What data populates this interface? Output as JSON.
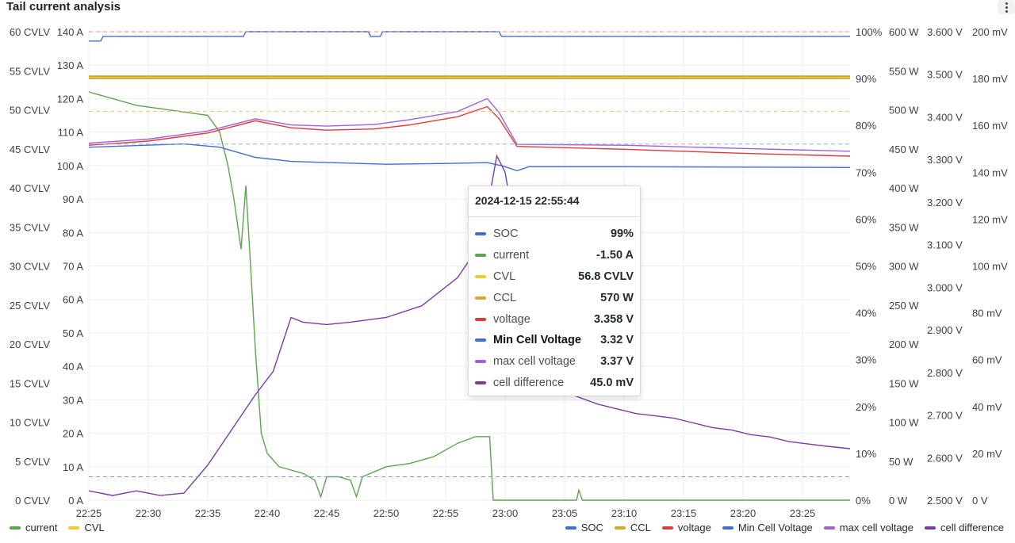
{
  "panel": {
    "title": "Tail current analysis"
  },
  "tooltip": {
    "time": "2024-12-15 22:55:44",
    "rows": [
      {
        "name": "SOC",
        "value": "99%",
        "color": "#3e6fd6"
      },
      {
        "name": "current",
        "value": "-1.50 A",
        "color": "#5aa64b"
      },
      {
        "name": "CVL",
        "value": "56.8 CVLV",
        "color": "#f2cc2a"
      },
      {
        "name": "CCL",
        "value": "570 W",
        "color": "#d9a72c"
      },
      {
        "name": "voltage",
        "value": "3.358 V",
        "color": "#e03a3a"
      },
      {
        "name": "Min Cell Voltage",
        "value": "3.32 V",
        "color": "#3e6fd6"
      },
      {
        "name": "max cell voltage",
        "value": "3.37 V",
        "color": "#a560d8"
      },
      {
        "name": "cell difference",
        "value": "45.0 mV",
        "color": "#7b3aa8"
      }
    ]
  },
  "legend_left": [
    {
      "name": "current",
      "color": "#5aa64b"
    },
    {
      "name": "CVL",
      "color": "#f2cc2a"
    }
  ],
  "legend_right": [
    {
      "name": "SOC",
      "color": "#3e6fd6"
    },
    {
      "name": "CCL",
      "color": "#d9a72c"
    },
    {
      "name": "voltage",
      "color": "#e03a3a"
    },
    {
      "name": "Min Cell Voltage",
      "color": "#3e6fd6"
    },
    {
      "name": "max cell voltage",
      "color": "#a560d8"
    },
    {
      "name": "cell difference",
      "color": "#7b3aa8"
    }
  ],
  "chart_data": {
    "type": "line",
    "x_ticks": [
      "22:25",
      "22:30",
      "22:35",
      "22:40",
      "22:45",
      "22:50",
      "22:55",
      "23:00",
      "23:05",
      "23:10",
      "23:15",
      "23:20",
      "23:25"
    ],
    "x_range_minutes": [
      0,
      64
    ],
    "axes": {
      "cvlv": {
        "ticks": [
          "0 CVLV",
          "5 CVLV",
          "10 CVLV",
          "15 CVLV",
          "20 CVLV",
          "25 CVLV",
          "30 CVLV",
          "35 CVLV",
          "40 CVLV",
          "45 CVLV",
          "50 CVLV",
          "55 CVLV",
          "60 CVLV"
        ],
        "range": [
          0,
          60
        ]
      },
      "amps": {
        "ticks": [
          "0 A",
          "10 A",
          "20 A",
          "30 A",
          "40 A",
          "50 A",
          "60 A",
          "70 A",
          "80 A",
          "90 A",
          "100 A",
          "110 A",
          "120 A",
          "130 A",
          "140 A"
        ],
        "range": [
          0,
          140
        ]
      },
      "percent": {
        "ticks": [
          "0%",
          "10%",
          "20%",
          "30%",
          "40%",
          "50%",
          "60%",
          "70%",
          "80%",
          "90%",
          "100%"
        ],
        "range": [
          0,
          100
        ]
      },
      "watts": {
        "ticks": [
          "0 W",
          "50 W",
          "100 W",
          "150 W",
          "200 W",
          "250 W",
          "300 W",
          "350 W",
          "400 W",
          "450 W",
          "500 W",
          "550 W",
          "600 W"
        ],
        "range": [
          0,
          600
        ]
      },
      "volts": {
        "ticks": [
          "2.500 V",
          "2.600 V",
          "2.700 V",
          "2.800 V",
          "2.900 V",
          "3.000 V",
          "3.100 V",
          "3.200 V",
          "3.300 V",
          "3.400 V",
          "3.500 V",
          "3.600 V"
        ],
        "range": [
          2.5,
          3.6
        ]
      },
      "millivolts": {
        "ticks": [
          "0 V",
          "20 mV",
          "40 mV",
          "60 mV",
          "80 mV",
          "100 mV",
          "120 mV",
          "140 mV",
          "160 mV",
          "180 mV",
          "200 mV"
        ],
        "range": [
          0,
          200
        ]
      }
    },
    "series": [
      {
        "name": "SOC",
        "axis": "percent",
        "color": "#3e6fd6",
        "points": [
          [
            0,
            98
          ],
          [
            1,
            98
          ],
          [
            1.2,
            99
          ],
          [
            13,
            99
          ],
          [
            13.2,
            100
          ],
          [
            23.5,
            100
          ],
          [
            23.7,
            99
          ],
          [
            24.5,
            99
          ],
          [
            24.7,
            100
          ],
          [
            34.5,
            100
          ],
          [
            34.7,
            99
          ],
          [
            64,
            99
          ]
        ]
      },
      {
        "name": "current",
        "axis": "amps",
        "color": "#5aa64b",
        "points": [
          [
            0,
            122
          ],
          [
            2,
            120
          ],
          [
            4,
            118
          ],
          [
            6,
            117
          ],
          [
            8,
            116
          ],
          [
            10,
            115
          ],
          [
            11,
            110
          ],
          [
            11.7,
            100
          ],
          [
            12.2,
            90
          ],
          [
            12.8,
            75
          ],
          [
            13.2,
            94
          ],
          [
            13.6,
            70
          ],
          [
            14,
            45
          ],
          [
            14.5,
            20
          ],
          [
            15,
            14
          ],
          [
            16,
            10
          ],
          [
            18,
            8
          ],
          [
            19,
            6
          ],
          [
            19.5,
            1
          ],
          [
            20,
            7
          ],
          [
            21,
            7
          ],
          [
            22,
            6
          ],
          [
            22.5,
            1
          ],
          [
            23,
            7
          ],
          [
            25,
            10
          ],
          [
            27,
            11
          ],
          [
            29,
            13
          ],
          [
            31,
            17
          ],
          [
            32.5,
            19
          ],
          [
            33.7,
            19
          ],
          [
            34,
            0
          ],
          [
            41,
            0
          ],
          [
            41.2,
            3
          ],
          [
            41.5,
            0
          ],
          [
            64,
            0
          ]
        ]
      },
      {
        "name": "CVL",
        "axis": "cvlv",
        "color": "#f2cc2a",
        "points": [
          [
            0,
            56.8
          ],
          [
            64,
            56.8
          ]
        ]
      },
      {
        "name": "CCL",
        "axis": "watts",
        "color": "#d9a72c",
        "points": [
          [
            0,
            570
          ],
          [
            64,
            570
          ]
        ]
      },
      {
        "name": "voltage",
        "axis": "volts",
        "color": "#e03a3a",
        "points": [
          [
            0,
            3.375
          ],
          [
            5,
            3.385
          ],
          [
            10,
            3.405
          ],
          [
            14,
            3.435
          ],
          [
            17,
            3.418
          ],
          [
            20,
            3.412
          ],
          [
            24,
            3.415
          ],
          [
            27,
            3.425
          ],
          [
            31,
            3.445
          ],
          [
            33.5,
            3.47
          ],
          [
            34.5,
            3.44
          ],
          [
            36,
            3.372
          ],
          [
            45,
            3.365
          ],
          [
            55,
            3.355
          ],
          [
            64,
            3.348
          ]
        ]
      },
      {
        "name": "Min Cell Voltage",
        "axis": "volts",
        "color": "#3e6fd6",
        "points": [
          [
            0,
            3.37
          ],
          [
            8,
            3.378
          ],
          [
            11,
            3.37
          ],
          [
            14,
            3.345
          ],
          [
            17,
            3.335
          ],
          [
            25,
            3.328
          ],
          [
            30,
            3.33
          ],
          [
            33.5,
            3.332
          ],
          [
            34.8,
            3.324
          ],
          [
            36,
            3.312
          ],
          [
            37,
            3.322
          ],
          [
            45,
            3.322
          ],
          [
            64,
            3.32
          ]
        ]
      },
      {
        "name": "max cell voltage",
        "axis": "volts",
        "color": "#a560d8",
        "points": [
          [
            0,
            3.38
          ],
          [
            5,
            3.39
          ],
          [
            10,
            3.41
          ],
          [
            14,
            3.44
          ],
          [
            17,
            3.425
          ],
          [
            20,
            3.422
          ],
          [
            24,
            3.426
          ],
          [
            27,
            3.438
          ],
          [
            31,
            3.458
          ],
          [
            33.5,
            3.49
          ],
          [
            34.5,
            3.455
          ],
          [
            36,
            3.377
          ],
          [
            45,
            3.375
          ],
          [
            55,
            3.367
          ],
          [
            64,
            3.36
          ]
        ]
      },
      {
        "name": "cell difference",
        "axis": "millivolts",
        "color": "#7b3aa8",
        "points": [
          [
            0,
            4
          ],
          [
            2,
            2
          ],
          [
            4,
            4
          ],
          [
            6,
            2
          ],
          [
            8,
            3
          ],
          [
            10,
            15
          ],
          [
            12,
            30
          ],
          [
            14,
            45
          ],
          [
            15.5,
            55
          ],
          [
            17,
            78
          ],
          [
            18,
            76
          ],
          [
            20,
            75
          ],
          [
            22,
            76
          ],
          [
            25,
            78
          ],
          [
            28,
            83
          ],
          [
            31,
            95
          ],
          [
            33,
            110
          ],
          [
            34.3,
            147
          ],
          [
            35,
            140
          ],
          [
            36,
            110
          ],
          [
            37,
            75
          ],
          [
            38,
            55
          ],
          [
            40,
            50
          ],
          [
            45,
            47
          ],
          [
            50,
            44
          ],
          [
            55,
            41
          ],
          [
            60,
            39
          ],
          [
            65,
            37
          ],
          [
            70,
            36
          ],
          [
            75,
            35
          ],
          [
            80,
            33
          ],
          [
            85,
            31
          ],
          [
            90,
            30
          ],
          [
            95,
            28
          ],
          [
            100,
            27
          ],
          [
            105,
            25
          ],
          [
            110,
            24
          ],
          [
            115,
            23
          ],
          [
            121,
            22
          ]
        ]
      },
      {
        "name": "reference 100%",
        "axis": "percent",
        "color": "#e88a8a",
        "dash": true,
        "points": [
          [
            0,
            100
          ],
          [
            64,
            100
          ]
        ]
      },
      {
        "name": "reference 90%",
        "axis": "percent",
        "color": "#b89a32",
        "points": [
          [
            0,
            90
          ],
          [
            64,
            90
          ]
        ]
      },
      {
        "name": "reference 83%",
        "axis": "percent",
        "color": "#f3c77a",
        "dash": true,
        "points": [
          [
            0,
            83
          ],
          [
            64,
            83
          ]
        ]
      },
      {
        "name": "reference 76%",
        "axis": "percent",
        "color": "#8fb0e0",
        "dash": true,
        "points": [
          [
            0,
            76
          ],
          [
            64,
            76
          ]
        ]
      },
      {
        "name": "reference 5%",
        "axis": "percent",
        "color": "#6a9bd6",
        "dash": true,
        "points": [
          [
            0,
            5
          ],
          [
            64,
            5
          ]
        ]
      }
    ]
  }
}
